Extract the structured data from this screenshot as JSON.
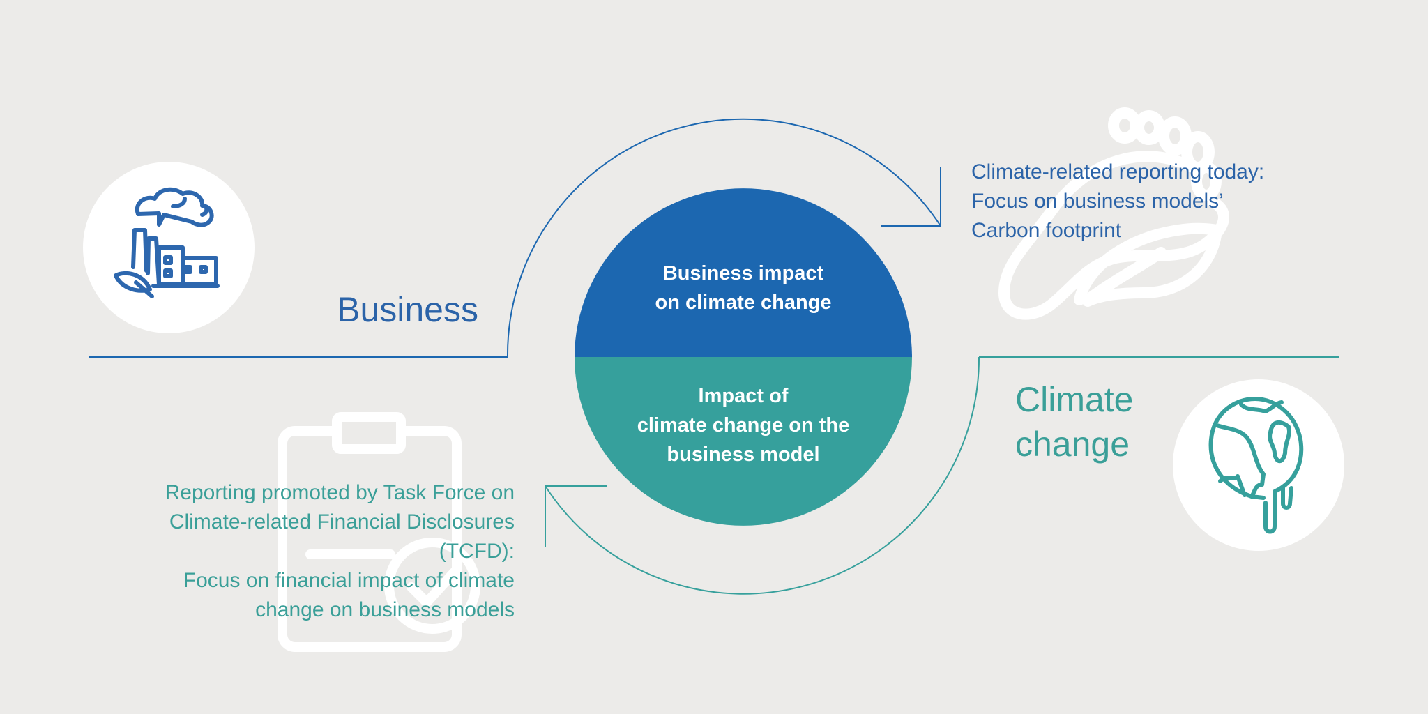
{
  "business": {
    "label": "Business",
    "icon": "factory-icon"
  },
  "climate": {
    "label_line1": "Climate",
    "label_line2": "change",
    "icon": "melting-globe-icon"
  },
  "center": {
    "top_line1": "Business impact",
    "top_line2": "on climate change",
    "bottom_line1": "Impact of",
    "bottom_line2": "climate change on the",
    "bottom_line3": "business model"
  },
  "note_top": {
    "line1": "Climate-related reporting today:",
    "line2": "Focus on business models’",
    "line3": "Carbon footprint",
    "background_icon": "footprint-icon"
  },
  "note_bottom": {
    "line1": "Reporting promoted by Task Force on",
    "line2": "Climate-related Financial Disclosures",
    "line3": "(TCFD):",
    "line4": "Focus on financial impact of climate",
    "line5": "change on business models",
    "background_icon": "clipboard-check-icon"
  },
  "colors": {
    "background": "#ecebe9",
    "blue": "#1c67b0",
    "teal": "#36a09c",
    "white": "#ffffff"
  }
}
